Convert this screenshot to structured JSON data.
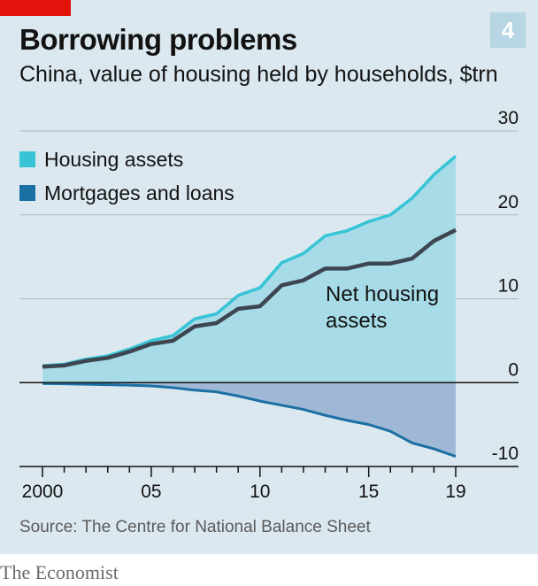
{
  "header": {
    "title": "Borrowing problems",
    "subtitle": "China, value of housing held by households, $trn",
    "number": "4"
  },
  "footer": {
    "source": "Source: The Centre for National Balance Sheet",
    "brand": "The Economist"
  },
  "colors": {
    "background": "#dbe8ef",
    "housing_assets": "#36c4d6",
    "housing_fill": "#a6dbe7",
    "mortgages": "#1a6fa3",
    "mortgage_fill": "#9fb8d5",
    "net": "#3d4550",
    "accent": "#e3120b",
    "grid": "#a9b7c0",
    "zero_line": "#121212"
  },
  "chart_data": {
    "type": "area",
    "title": "Borrowing problems",
    "subtitle": "China, value of housing held by households, $trn",
    "x": [
      2000,
      2001,
      2002,
      2003,
      2004,
      2005,
      2006,
      2007,
      2008,
      2009,
      2010,
      2011,
      2012,
      2013,
      2014,
      2015,
      2016,
      2017,
      2018,
      2019
    ],
    "x_tick_values": [
      2000,
      2005,
      2010,
      2015,
      2019
    ],
    "x_tick_labels": [
      "2000",
      "05",
      "10",
      "15",
      "19"
    ],
    "ylim": [
      -10,
      30
    ],
    "y_ticks": [
      -10,
      0,
      10,
      20,
      30
    ],
    "y_tick_labels": [
      "-10",
      "0",
      "10",
      "20",
      "30"
    ],
    "grid": true,
    "legend_position": "top-left",
    "series": [
      {
        "name": "Housing assets",
        "values": [
          2.0,
          2.2,
          2.8,
          3.2,
          4.0,
          5.0,
          5.6,
          7.6,
          8.2,
          10.4,
          11.3,
          14.3,
          15.4,
          17.5,
          18.1,
          19.2,
          20.0,
          22.0,
          24.8,
          27.0
        ]
      },
      {
        "name": "Mortgages and loans",
        "values": [
          -0.1,
          -0.15,
          -0.2,
          -0.25,
          -0.3,
          -0.4,
          -0.6,
          -0.9,
          -1.1,
          -1.6,
          -2.2,
          -2.7,
          -3.2,
          -3.9,
          -4.5,
          -5.0,
          -5.8,
          -7.2,
          -7.9,
          -8.8
        ]
      },
      {
        "name": "Net housing assets",
        "values": [
          1.9,
          2.05,
          2.6,
          2.95,
          3.7,
          4.6,
          5.0,
          6.7,
          7.1,
          8.8,
          9.1,
          11.6,
          12.2,
          13.6,
          13.6,
          14.2,
          14.2,
          14.8,
          16.9,
          18.2
        ]
      }
    ],
    "legend": [
      "Housing assets",
      "Mortgages and loans"
    ],
    "annotation": [
      "Net housing",
      "assets"
    ]
  }
}
